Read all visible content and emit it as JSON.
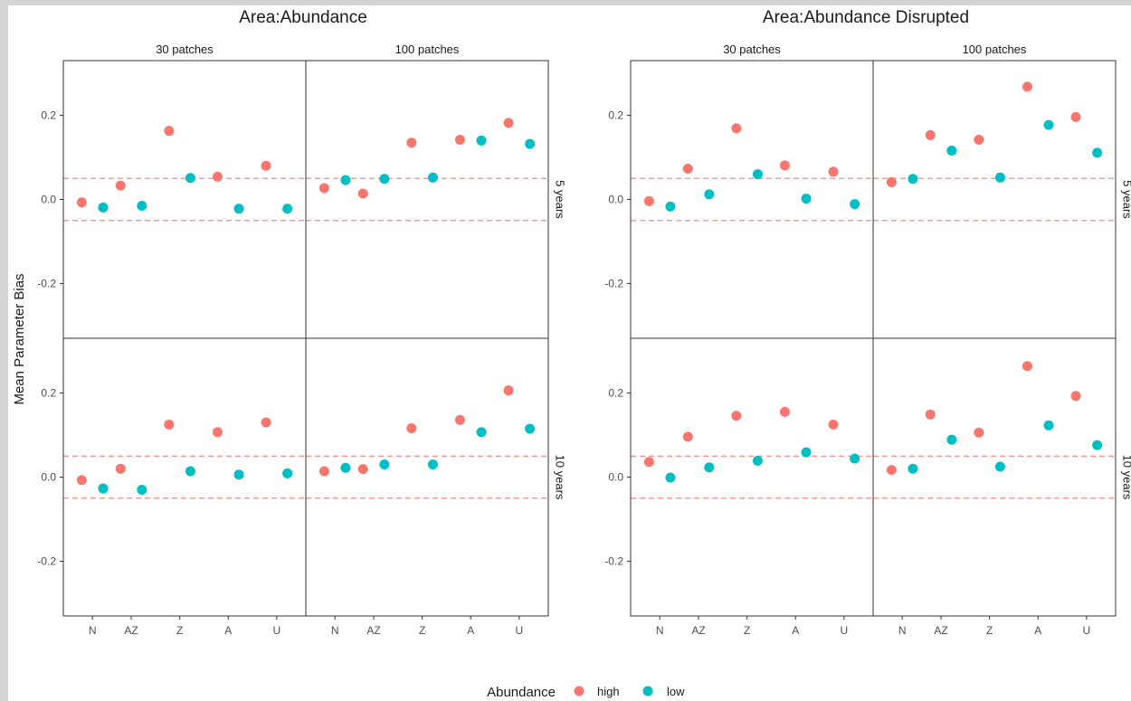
{
  "ylabel": "Mean Parameter Bias",
  "legend": {
    "title": "Abundance",
    "entries": [
      {
        "label": "high",
        "color": "#f8766d"
      },
      {
        "label": "low",
        "color": "#00bfc4"
      }
    ]
  },
  "chart_data": [
    {
      "type": "scatter",
      "title": "Area:Abundance",
      "ylabel": "Mean Parameter Bias",
      "categories": [
        "N",
        "AZ",
        "Z",
        "A",
        "U"
      ],
      "ylim": [
        -0.33,
        0.33
      ],
      "yticks": [
        -0.2,
        0.0,
        0.2
      ],
      "ytick_labels": [
        "-0.2",
        "0.0",
        "0.2"
      ],
      "reference_lines": [
        -0.05,
        0.05
      ],
      "col_facets": [
        "30 patches",
        "100 patches"
      ],
      "row_facets": [
        "5 years",
        "10 years"
      ],
      "panels": [
        {
          "col": "30 patches",
          "row": "5 years",
          "series": [
            {
              "name": "high",
              "values": [
                -0.007,
                0.033,
                0.163,
                0.054,
                0.08
              ]
            },
            {
              "name": "low",
              "values": [
                -0.019,
                -0.015,
                0.051,
                -0.022,
                -0.022
              ]
            }
          ]
        },
        {
          "col": "100 patches",
          "row": "5 years",
          "series": [
            {
              "name": "high",
              "values": [
                0.027,
                0.014,
                0.135,
                0.142,
                0.182
              ]
            },
            {
              "name": "low",
              "values": [
                0.046,
                0.049,
                0.052,
                0.14,
                0.132
              ]
            }
          ]
        },
        {
          "col": "30 patches",
          "row": "10 years",
          "series": [
            {
              "name": "high",
              "values": [
                -0.007,
                0.02,
                0.125,
                0.107,
                0.13
              ]
            },
            {
              "name": "low",
              "values": [
                -0.027,
                -0.03,
                0.014,
                0.006,
                0.009
              ]
            }
          ]
        },
        {
          "col": "100 patches",
          "row": "10 years",
          "series": [
            {
              "name": "high",
              "values": [
                0.014,
                0.019,
                0.116,
                0.136,
                0.206
              ]
            },
            {
              "name": "low",
              "values": [
                0.022,
                0.03,
                0.03,
                0.107,
                0.115
              ]
            }
          ]
        }
      ]
    },
    {
      "type": "scatter",
      "title": "Area:Abundance Disrupted",
      "ylabel": "Mean Parameter Bias",
      "categories": [
        "N",
        "AZ",
        "Z",
        "A",
        "U"
      ],
      "ylim": [
        -0.33,
        0.33
      ],
      "yticks": [
        -0.2,
        0.0,
        0.2
      ],
      "ytick_labels": [
        "-0.2",
        "0.0",
        "0.2"
      ],
      "reference_lines": [
        -0.05,
        0.05
      ],
      "col_facets": [
        "30 patches",
        "100 patches"
      ],
      "row_facets": [
        "5 years",
        "10 years"
      ],
      "panels": [
        {
          "col": "30 patches",
          "row": "5 years",
          "series": [
            {
              "name": "high",
              "values": [
                -0.004,
                0.073,
                0.169,
                0.081,
                0.066
              ]
            },
            {
              "name": "low",
              "values": [
                -0.017,
                0.012,
                0.06,
                0.002,
                -0.011
              ]
            }
          ]
        },
        {
          "col": "100 patches",
          "row": "5 years",
          "series": [
            {
              "name": "high",
              "values": [
                0.041,
                0.153,
                0.142,
                0.268,
                0.196
              ]
            },
            {
              "name": "low",
              "values": [
                0.049,
                0.116,
                0.052,
                0.177,
                0.111
              ]
            }
          ]
        },
        {
          "col": "30 patches",
          "row": "10 years",
          "series": [
            {
              "name": "high",
              "values": [
                0.036,
                0.096,
                0.146,
                0.155,
                0.125
              ]
            },
            {
              "name": "low",
              "values": [
                -0.001,
                0.023,
                0.039,
                0.059,
                0.044
              ]
            }
          ]
        },
        {
          "col": "100 patches",
          "row": "10 years",
          "series": [
            {
              "name": "high",
              "values": [
                0.017,
                0.149,
                0.106,
                0.264,
                0.193
              ]
            },
            {
              "name": "low",
              "values": [
                0.02,
                0.089,
                0.025,
                0.123,
                0.076
              ]
            }
          ]
        }
      ]
    }
  ]
}
